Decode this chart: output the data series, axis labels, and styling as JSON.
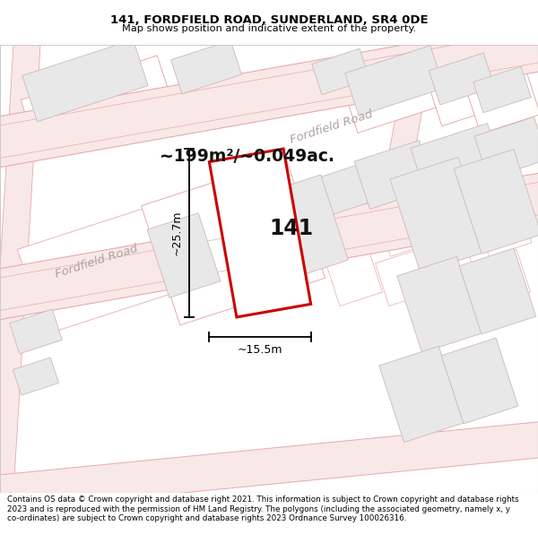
{
  "title": "141, FORDFIELD ROAD, SUNDERLAND, SR4 0DE",
  "subtitle": "Map shows position and indicative extent of the property.",
  "footer": "Contains OS data © Crown copyright and database right 2021. This information is subject to Crown copyright and database rights 2023 and is reproduced with the permission of HM Land Registry. The polygons (including the associated geometry, namely x, y co-ordinates) are subject to Crown copyright and database rights 2023 Ordnance Survey 100026316.",
  "area_text": "~199m²/~0.049ac.",
  "label": "141",
  "dim_width": "~15.5m",
  "dim_height": "~25.7m",
  "map_bg": "#ffffff",
  "road_fill": "#f9e8e8",
  "road_edge": "#e8aaaa",
  "highlight_color": "#cc0000",
  "building_fill": "#e8e8e8",
  "building_edge": "#d0b8b8",
  "plot_edge": "#d0b8b8",
  "road_label_color": "#b0a0a0",
  "dim_line_color": "#000000",
  "label_color": "#111111"
}
